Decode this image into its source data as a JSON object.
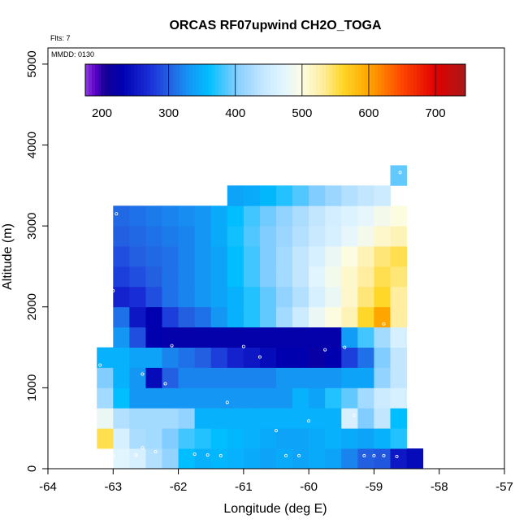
{
  "chart_data": {
    "type": "heatmap",
    "title": "ORCAS RF07upwind CH2O_TOGA",
    "flts_label": "Flts: 7",
    "mmdd_label": "MMDD: 0130",
    "xlabel": "Longitude (deg E)",
    "ylabel": "Altitude (m)",
    "xlim": [
      -64,
      -57
    ],
    "ylim": [
      0,
      5200
    ],
    "x_ticks": [
      -64,
      -63,
      -62,
      -61,
      -60,
      -59,
      -58,
      -57
    ],
    "x_tick_labels": [
      "-64",
      "-63",
      "-62",
      "-61",
      "-60",
      "-59",
      "-58",
      "-57"
    ],
    "y_ticks": [
      0,
      1000,
      2000,
      3000,
      4000,
      5000
    ],
    "y_tick_labels": [
      "0",
      "1000",
      "2000",
      "3000",
      "4000",
      "5000"
    ],
    "colorbar": {
      "range": [
        175,
        745
      ],
      "ticks": [
        200,
        300,
        400,
        500,
        600,
        700
      ],
      "tick_labels": [
        "200",
        "300",
        "400",
        "500",
        "600",
        "700"
      ]
    },
    "cell_width_deg": 0.25,
    "cell_height_m": 250,
    "rows": [
      {
        "alt": 125,
        "x0": -63.0,
        "values": [
          470,
          460,
          430,
          410,
          360,
          350,
          355,
          350,
          345,
          340,
          345,
          340,
          345,
          340,
          320,
          300,
          295,
          250,
          240
        ]
      },
      {
        "alt": 375,
        "x0": -63.25,
        "values": [
          550,
          460,
          425,
          420,
          400,
          380,
          370,
          360,
          355,
          350,
          345,
          340,
          340,
          345,
          350,
          345,
          340,
          350,
          370
        ]
      },
      {
        "alt": 625,
        "x0": -63.25,
        "values": [
          480,
          430,
          420,
          420,
          420,
          410,
          350,
          350,
          350,
          350,
          350,
          350,
          350,
          350,
          350,
          460,
          400,
          440,
          360
        ]
      },
      {
        "alt": 875,
        "x0": -63.25,
        "values": [
          420,
          360,
          330,
          330,
          330,
          330,
          330,
          330,
          330,
          330,
          330,
          330,
          350,
          340,
          370,
          390,
          420,
          450,
          460
        ]
      },
      {
        "alt": 1125,
        "x0": -63.25,
        "values": [
          400,
          350,
          330,
          240,
          300,
          320,
          320,
          320,
          320,
          320,
          320,
          330,
          330,
          330,
          330,
          340,
          340,
          410,
          440
        ]
      },
      {
        "alt": 1375,
        "x0": -63.25,
        "values": [
          350,
          350,
          340,
          340,
          320,
          310,
          300,
          280,
          260,
          250,
          240,
          230,
          230,
          220,
          230,
          280,
          310,
          400,
          440
        ]
      },
      {
        "alt": 1625,
        "x0": -63.0,
        "values": [
          330,
          290,
          230,
          225,
          225,
          225,
          225,
          225,
          225,
          225,
          225,
          225,
          225,
          225,
          335,
          380,
          420,
          460
        ]
      },
      {
        "alt": 1875,
        "x0": -63.0,
        "values": [
          310,
          250,
          230,
          280,
          300,
          310,
          330,
          350,
          370,
          390,
          420,
          450,
          480,
          500,
          520,
          560,
          600,
          530
        ]
      },
      {
        "alt": 2125,
        "x0": -63.0,
        "values": [
          260,
          270,
          290,
          310,
          320,
          330,
          340,
          350,
          370,
          390,
          410,
          430,
          460,
          480,
          510,
          540,
          560,
          530
        ]
      },
      {
        "alt": 2375,
        "x0": -63.0,
        "values": [
          280,
          290,
          300,
          310,
          320,
          330,
          340,
          360,
          380,
          400,
          420,
          440,
          470,
          490,
          510,
          530,
          550,
          540
        ]
      },
      {
        "alt": 2625,
        "x0": -63.0,
        "values": [
          290,
          300,
          305,
          310,
          320,
          330,
          340,
          360,
          380,
          400,
          420,
          440,
          460,
          480,
          500,
          520,
          540,
          550
        ]
      },
      {
        "alt": 2875,
        "x0": -63.0,
        "values": [
          300,
          305,
          310,
          315,
          320,
          330,
          345,
          365,
          385,
          400,
          415,
          430,
          445,
          460,
          475,
          490,
          510,
          520
        ]
      },
      {
        "alt": 3125,
        "x0": -63.0,
        "values": [
          305,
          310,
          315,
          320,
          325,
          330,
          345,
          360,
          380,
          395,
          410,
          425,
          440,
          455,
          465,
          475,
          490,
          500
        ]
      },
      {
        "alt": 3375,
        "x0": -61.25,
        "values": [
          340,
          345,
          355,
          370,
          385,
          400,
          415,
          430,
          440,
          450
        ]
      },
      {
        "alt": 3625,
        "x0": -58.75,
        "values": [
          390
        ]
      }
    ],
    "markers": [
      {
        "x": -62.95,
        "y": 3150
      },
      {
        "x": -63.0,
        "y": 2200
      },
      {
        "x": -62.1,
        "y": 1520
      },
      {
        "x": -61.0,
        "y": 1510
      },
      {
        "x": -60.75,
        "y": 1380
      },
      {
        "x": -59.75,
        "y": 1470
      },
      {
        "x": -59.45,
        "y": 1500
      },
      {
        "x": -62.55,
        "y": 1170
      },
      {
        "x": -62.2,
        "y": 1050
      },
      {
        "x": -63.2,
        "y": 1280
      },
      {
        "x": -61.25,
        "y": 820
      },
      {
        "x": -60.5,
        "y": 470
      },
      {
        "x": -60.0,
        "y": 590
      },
      {
        "x": -59.3,
        "y": 660
      },
      {
        "x": -62.55,
        "y": 260
      },
      {
        "x": -62.35,
        "y": 210
      },
      {
        "x": -62.65,
        "y": 170
      },
      {
        "x": -61.75,
        "y": 180
      },
      {
        "x": -61.55,
        "y": 170
      },
      {
        "x": -61.35,
        "y": 160
      },
      {
        "x": -60.35,
        "y": 160
      },
      {
        "x": -60.15,
        "y": 160
      },
      {
        "x": -59.15,
        "y": 160
      },
      {
        "x": -59.0,
        "y": 160
      },
      {
        "x": -58.85,
        "y": 160
      },
      {
        "x": -58.65,
        "y": 150
      },
      {
        "x": -63.0,
        "y": 160
      },
      {
        "x": -58.85,
        "y": 1790
      },
      {
        "x": -58.6,
        "y": 3660
      }
    ]
  }
}
